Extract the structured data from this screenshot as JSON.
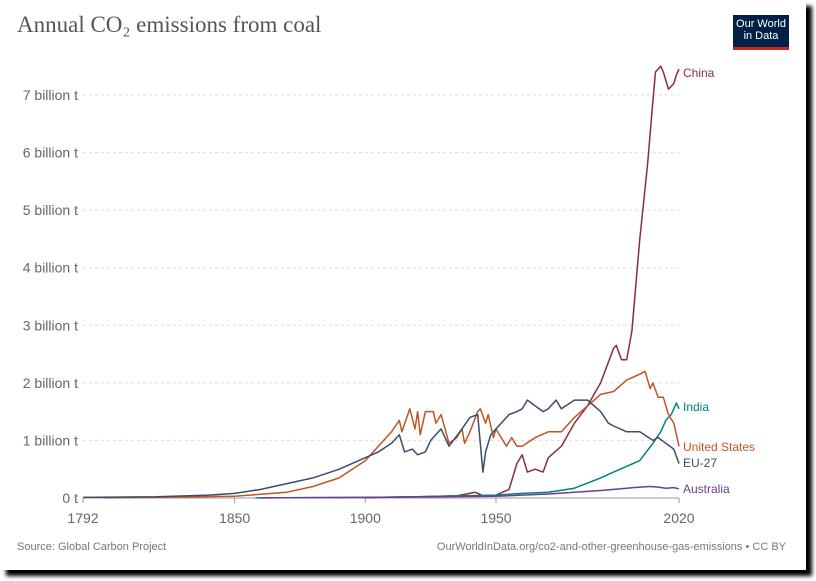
{
  "title": "Annual CO₂ emissions from coal",
  "logo": {
    "line1": "Our World",
    "line2": "in Data"
  },
  "footer": {
    "source": "Source: Global Carbon Project",
    "url": "OurWorldInData.org/co2-and-other-greenhouse-gas-emissions • CC BY"
  },
  "chart_data": {
    "type": "line",
    "title": "Annual CO₂ emissions from coal",
    "xlim": [
      1792,
      2020
    ],
    "ylim": [
      0,
      7
    ],
    "x_ticks": [
      {
        "value": 1792,
        "label": "1792"
      },
      {
        "value": 1850,
        "label": "1850"
      },
      {
        "value": 1900,
        "label": "1900"
      },
      {
        "value": 1950,
        "label": "1950"
      },
      {
        "value": 2020,
        "label": "2020"
      }
    ],
    "y_ticks": [
      {
        "value": 0,
        "label": "0 t"
      },
      {
        "value": 1,
        "label": "1 billion t"
      },
      {
        "value": 2,
        "label": "2 billion t"
      },
      {
        "value": 3,
        "label": "3 billion t"
      },
      {
        "value": 4,
        "label": "4 billion t"
      },
      {
        "value": 5,
        "label": "5 billion t"
      },
      {
        "value": 6,
        "label": "6 billion t"
      },
      {
        "value": 7,
        "label": "7 billion t"
      }
    ],
    "grid": "horizontal dashed",
    "legend": "line-end labels",
    "series": [
      {
        "name": "China",
        "color": "#883039",
        "points": [
          [
            1900,
            0.005
          ],
          [
            1920,
            0.02
          ],
          [
            1935,
            0.04
          ],
          [
            1940,
            0.08
          ],
          [
            1942,
            0.1
          ],
          [
            1945,
            0.04
          ],
          [
            1950,
            0.05
          ],
          [
            1955,
            0.15
          ],
          [
            1958,
            0.6
          ],
          [
            1960,
            0.75
          ],
          [
            1962,
            0.45
          ],
          [
            1965,
            0.5
          ],
          [
            1968,
            0.45
          ],
          [
            1970,
            0.7
          ],
          [
            1975,
            0.9
          ],
          [
            1980,
            1.3
          ],
          [
            1985,
            1.6
          ],
          [
            1990,
            2.0
          ],
          [
            1995,
            2.6
          ],
          [
            1996,
            2.65
          ],
          [
            1998,
            2.4
          ],
          [
            2000,
            2.4
          ],
          [
            2002,
            2.9
          ],
          [
            2005,
            4.5
          ],
          [
            2008,
            5.8
          ],
          [
            2010,
            6.9
          ],
          [
            2011,
            7.4
          ],
          [
            2013,
            7.5
          ],
          [
            2014,
            7.4
          ],
          [
            2016,
            7.1
          ],
          [
            2018,
            7.2
          ],
          [
            2019,
            7.35
          ],
          [
            2020,
            7.45
          ]
        ]
      },
      {
        "name": "India",
        "color": "#00847e",
        "points": [
          [
            1858,
            0.001
          ],
          [
            1900,
            0.01
          ],
          [
            1920,
            0.02
          ],
          [
            1950,
            0.05
          ],
          [
            1960,
            0.08
          ],
          [
            1970,
            0.1
          ],
          [
            1980,
            0.17
          ],
          [
            1990,
            0.35
          ],
          [
            1995,
            0.45
          ],
          [
            2000,
            0.55
          ],
          [
            2005,
            0.65
          ],
          [
            2010,
            0.95
          ],
          [
            2013,
            1.15
          ],
          [
            2015,
            1.35
          ],
          [
            2017,
            1.45
          ],
          [
            2018,
            1.55
          ],
          [
            2019,
            1.65
          ],
          [
            2020,
            1.55
          ]
        ]
      },
      {
        "name": "United States",
        "color": "#c15524",
        "points": [
          [
            1800,
            0.001
          ],
          [
            1850,
            0.03
          ],
          [
            1870,
            0.1
          ],
          [
            1880,
            0.2
          ],
          [
            1890,
            0.35
          ],
          [
            1900,
            0.65
          ],
          [
            1905,
            0.9
          ],
          [
            1910,
            1.15
          ],
          [
            1913,
            1.35
          ],
          [
            1914,
            1.15
          ],
          [
            1917,
            1.55
          ],
          [
            1919,
            1.2
          ],
          [
            1920,
            1.5
          ],
          [
            1921,
            1.1
          ],
          [
            1923,
            1.5
          ],
          [
            1926,
            1.5
          ],
          [
            1927,
            1.3
          ],
          [
            1929,
            1.45
          ],
          [
            1932,
            0.95
          ],
          [
            1935,
            1.05
          ],
          [
            1937,
            1.2
          ],
          [
            1938,
            0.95
          ],
          [
            1940,
            1.15
          ],
          [
            1943,
            1.5
          ],
          [
            1944,
            1.55
          ],
          [
            1946,
            1.3
          ],
          [
            1947,
            1.45
          ],
          [
            1949,
            1.05
          ],
          [
            1950,
            1.2
          ],
          [
            1952,
            1.05
          ],
          [
            1954,
            0.9
          ],
          [
            1956,
            1.05
          ],
          [
            1958,
            0.9
          ],
          [
            1960,
            0.9
          ],
          [
            1965,
            1.05
          ],
          [
            1970,
            1.15
          ],
          [
            1975,
            1.15
          ],
          [
            1980,
            1.4
          ],
          [
            1985,
            1.6
          ],
          [
            1990,
            1.8
          ],
          [
            1995,
            1.85
          ],
          [
            2000,
            2.05
          ],
          [
            2005,
            2.15
          ],
          [
            2007,
            2.2
          ],
          [
            2009,
            1.9
          ],
          [
            2010,
            2.0
          ],
          [
            2012,
            1.75
          ],
          [
            2014,
            1.75
          ],
          [
            2016,
            1.45
          ],
          [
            2018,
            1.3
          ],
          [
            2019,
            1.1
          ],
          [
            2020,
            0.9
          ]
        ]
      },
      {
        "name": "EU-27",
        "color": "#3c4e66",
        "points": [
          [
            1792,
            0.01
          ],
          [
            1820,
            0.02
          ],
          [
            1840,
            0.05
          ],
          [
            1850,
            0.08
          ],
          [
            1860,
            0.15
          ],
          [
            1870,
            0.25
          ],
          [
            1880,
            0.35
          ],
          [
            1890,
            0.5
          ],
          [
            1900,
            0.7
          ],
          [
            1905,
            0.8
          ],
          [
            1910,
            0.95
          ],
          [
            1913,
            1.1
          ],
          [
            1915,
            0.8
          ],
          [
            1918,
            0.85
          ],
          [
            1920,
            0.75
          ],
          [
            1923,
            0.8
          ],
          [
            1925,
            1.0
          ],
          [
            1929,
            1.2
          ],
          [
            1932,
            0.9
          ],
          [
            1937,
            1.2
          ],
          [
            1940,
            1.4
          ],
          [
            1943,
            1.45
          ],
          [
            1945,
            0.45
          ],
          [
            1946,
            0.8
          ],
          [
            1948,
            1.1
          ],
          [
            1950,
            1.2
          ],
          [
            1955,
            1.45
          ],
          [
            1958,
            1.5
          ],
          [
            1960,
            1.55
          ],
          [
            1962,
            1.7
          ],
          [
            1965,
            1.6
          ],
          [
            1968,
            1.5
          ],
          [
            1970,
            1.55
          ],
          [
            1973,
            1.7
          ],
          [
            1975,
            1.55
          ],
          [
            1980,
            1.7
          ],
          [
            1985,
            1.7
          ],
          [
            1990,
            1.5
          ],
          [
            1993,
            1.3
          ],
          [
            1995,
            1.25
          ],
          [
            2000,
            1.15
          ],
          [
            2005,
            1.15
          ],
          [
            2010,
            1.0
          ],
          [
            2012,
            1.05
          ],
          [
            2015,
            0.95
          ],
          [
            2018,
            0.85
          ],
          [
            2020,
            0.6
          ]
        ]
      },
      {
        "name": "Australia",
        "color": "#6d3e91",
        "points": [
          [
            1860,
            0.001
          ],
          [
            1900,
            0.01
          ],
          [
            1950,
            0.03
          ],
          [
            1960,
            0.05
          ],
          [
            1970,
            0.07
          ],
          [
            1980,
            0.1
          ],
          [
            1990,
            0.13
          ],
          [
            2000,
            0.17
          ],
          [
            2005,
            0.19
          ],
          [
            2009,
            0.2
          ],
          [
            2012,
            0.19
          ],
          [
            2015,
            0.17
          ],
          [
            2018,
            0.18
          ],
          [
            2020,
            0.16
          ]
        ]
      }
    ]
  }
}
